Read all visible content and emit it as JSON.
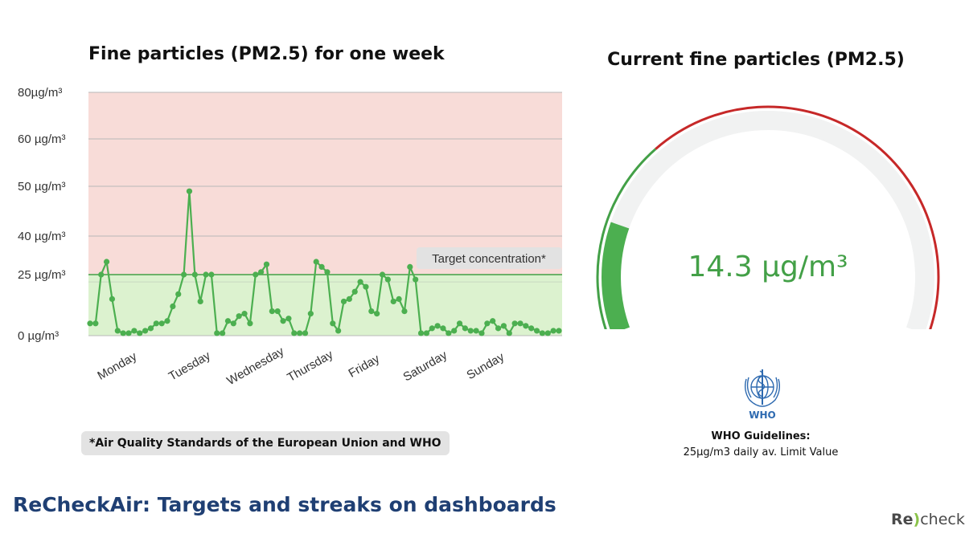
{
  "titles": {
    "week_chart": "Fine particles (PM2.5) for one week",
    "current": "Current fine particles (PM2.5)",
    "bottom": "ReCheckAir: Targets and streaks on dashboards"
  },
  "footnote": "*Air Quality Standards of the European Union and WHO",
  "target_label": "Target concentration*",
  "chart_data": {
    "type": "line",
    "title": "Fine particles (PM2.5) for one week",
    "xlabel": "",
    "ylabel": "",
    "y_tick_labels": [
      "80µg/m³",
      "60 µg/m³",
      "50 µg/m³",
      "40 µg/m³",
      "25 µg/m³",
      "0 µg/m³"
    ],
    "y_ticks": [
      80,
      60,
      50,
      40,
      25,
      0
    ],
    "x_tick_labels": [
      "Monday",
      "Tuesday",
      "Wednesday",
      "Thursday",
      "Friday",
      "Saturday",
      "Sunday"
    ],
    "target_value": 25,
    "zones": {
      "good_color": "#dcf2cf",
      "bad_color": "#f8dcd8"
    },
    "series": [
      {
        "color": "#4caf50",
        "values": [
          5,
          5,
          25,
          30,
          15,
          2,
          1,
          1,
          2,
          1,
          2,
          3,
          5,
          5,
          6,
          12,
          17,
          25,
          49,
          25,
          14,
          25,
          25,
          1,
          1,
          6,
          5,
          8,
          9,
          5,
          25,
          26,
          29,
          10,
          10,
          6,
          7,
          1,
          1,
          1,
          9,
          30,
          28,
          26,
          5,
          2,
          14,
          15,
          18,
          22,
          20,
          10,
          9,
          25,
          23,
          14,
          15,
          10,
          28,
          23,
          1,
          1,
          3,
          4,
          3,
          1,
          2,
          5,
          3,
          2,
          2,
          1,
          5,
          6,
          3,
          4,
          1,
          5,
          5,
          4,
          3,
          2,
          1,
          1,
          2,
          2
        ]
      }
    ]
  },
  "gauge": {
    "value": 14.3,
    "value_text": "14.3 µg/m³",
    "min": 0,
    "max": 80,
    "target": 25,
    "good_color": "#43a047",
    "bad_color": "#c62828",
    "track_color": "#f1f2f2"
  },
  "who": {
    "logo_label": "WHO",
    "guidelines": "WHO Guidelines:",
    "limit": "25µg/m3 daily av. Limit Value"
  },
  "brand": {
    "re": "Re",
    "paren": ")",
    "check": "check"
  }
}
